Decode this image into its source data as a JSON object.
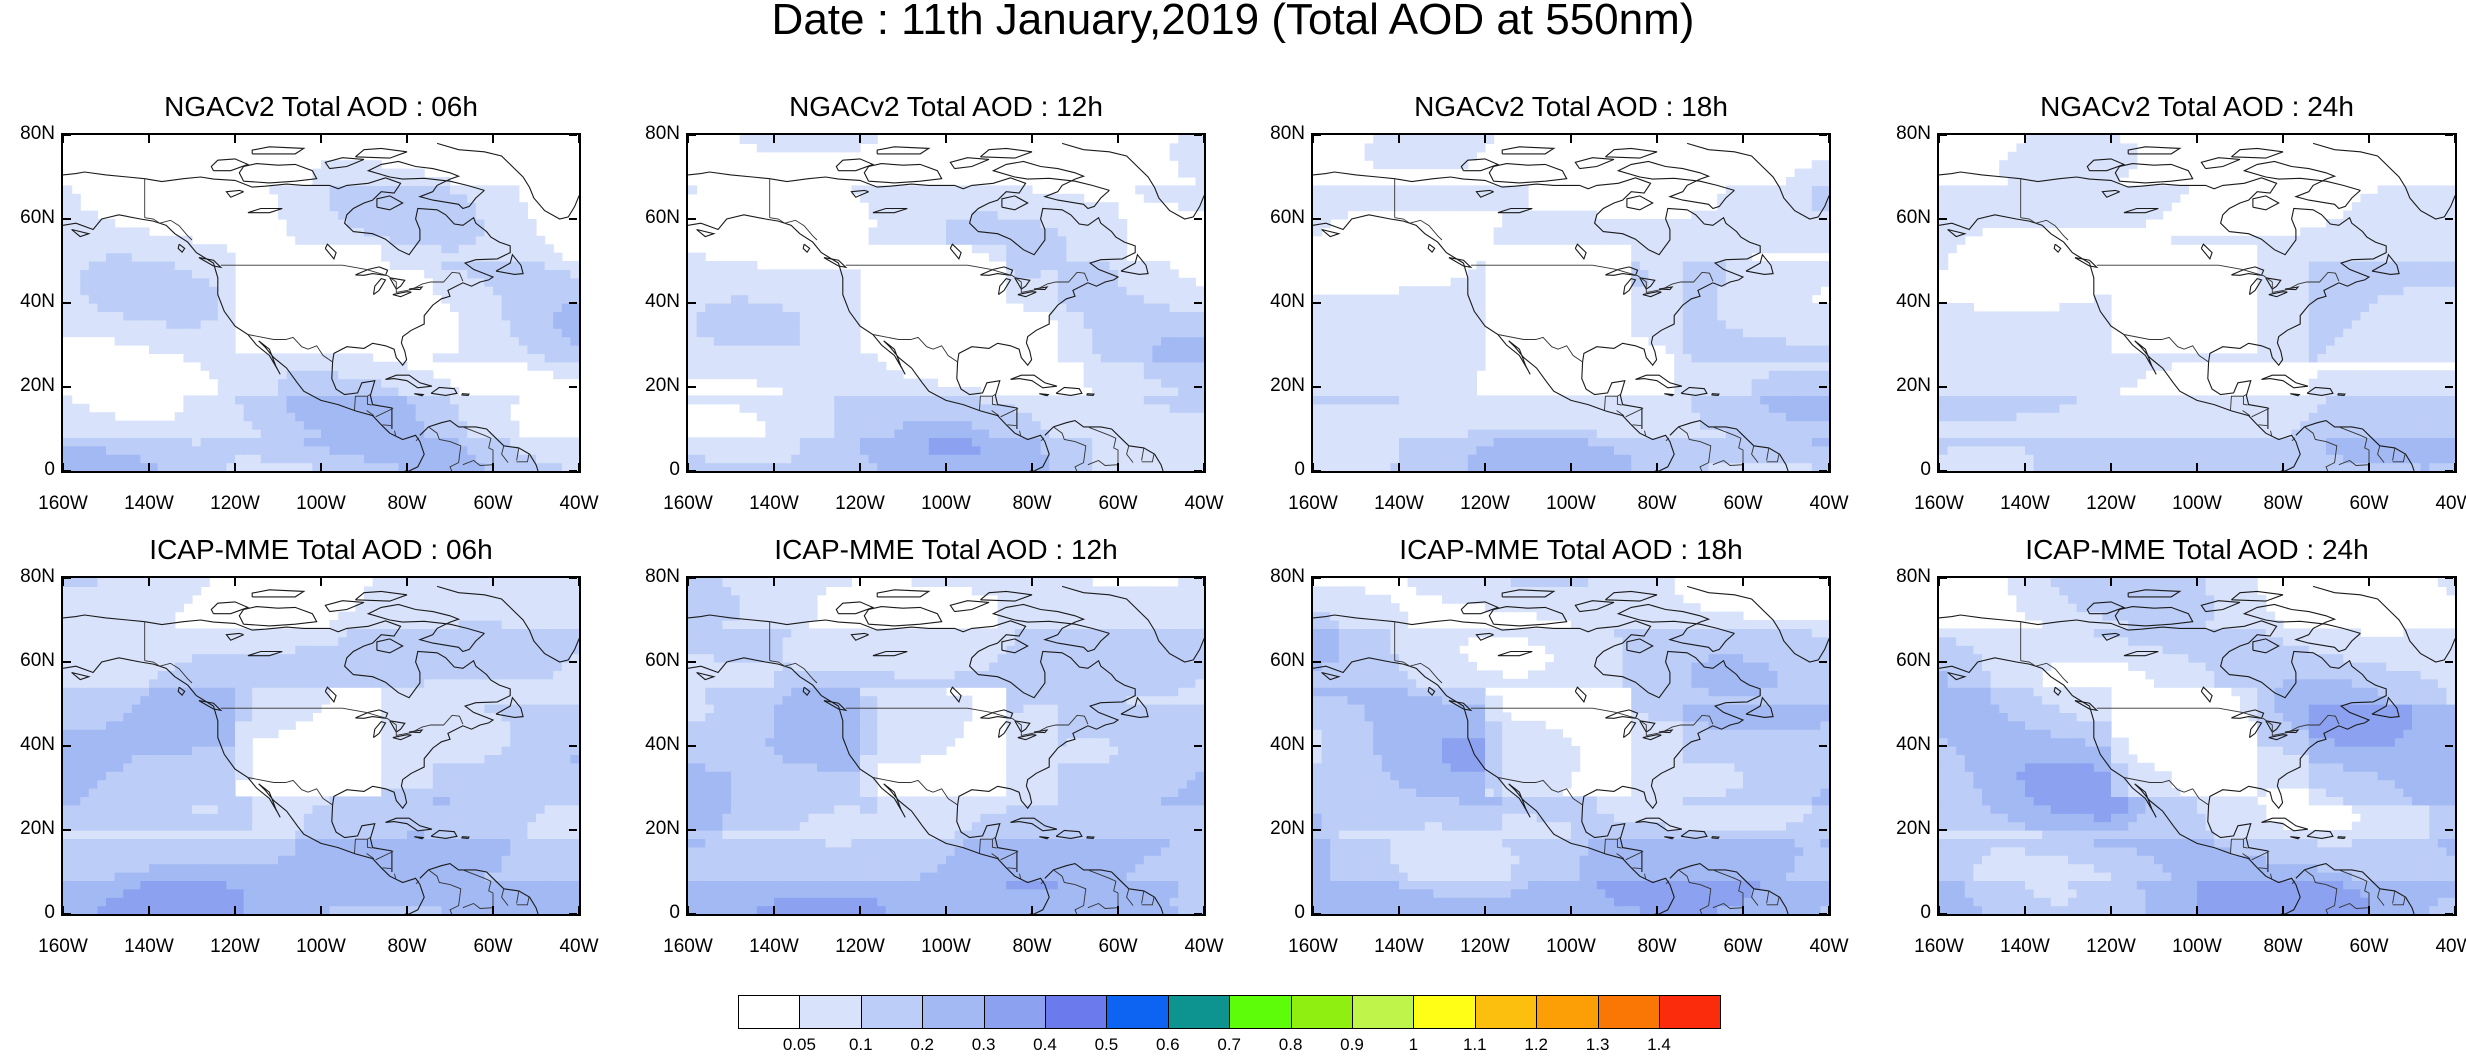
{
  "title": "Date : 11th January,2019 (Total AOD at 550nm)",
  "panels": [
    {
      "title": "NGACv2 Total AOD : 06h",
      "model": "NGACv2",
      "lead": "06h"
    },
    {
      "title": "NGACv2 Total AOD : 12h",
      "model": "NGACv2",
      "lead": "12h"
    },
    {
      "title": "NGACv2 Total AOD : 18h",
      "model": "NGACv2",
      "lead": "18h"
    },
    {
      "title": "NGACv2 Total AOD : 24h",
      "model": "NGACv2",
      "lead": "24h"
    },
    {
      "title": "ICAP-MME Total AOD : 06h",
      "model": "ICAP-MME",
      "lead": "06h"
    },
    {
      "title": "ICAP-MME Total AOD : 12h",
      "model": "ICAP-MME",
      "lead": "12h"
    },
    {
      "title": "ICAP-MME Total AOD : 18h",
      "model": "ICAP-MME",
      "lead": "18h"
    },
    {
      "title": "ICAP-MME Total AOD : 24h",
      "model": "ICAP-MME",
      "lead": "24h"
    }
  ],
  "axes": {
    "lat_ticks": [
      "80N",
      "60N",
      "40N",
      "20N",
      "0"
    ],
    "lon_ticks": [
      "160W",
      "140W",
      "120W",
      "100W",
      "80W",
      "60W",
      "40W"
    ],
    "lat_range": [
      0,
      80
    ],
    "lon_range": [
      -160,
      -40
    ]
  },
  "colorbar": {
    "labels": [
      "0.05",
      "0.1",
      "0.2",
      "0.3",
      "0.4",
      "0.5",
      "0.6",
      "0.7",
      "0.8",
      "0.9",
      "1",
      "1.1",
      "1.2",
      "1.3",
      "1.4"
    ],
    "colors": [
      "#ffffff",
      "#d8e2fa",
      "#bccdf7",
      "#a2b9f4",
      "#8ca2f1",
      "#6b7bee",
      "#0d63f2",
      "#0d9490",
      "#5dfd0a",
      "#8fef11",
      "#bff54a",
      "#fffe16",
      "#fdbf0e",
      "#fc9f06",
      "#fb7705",
      "#fb2c0c"
    ]
  }
}
